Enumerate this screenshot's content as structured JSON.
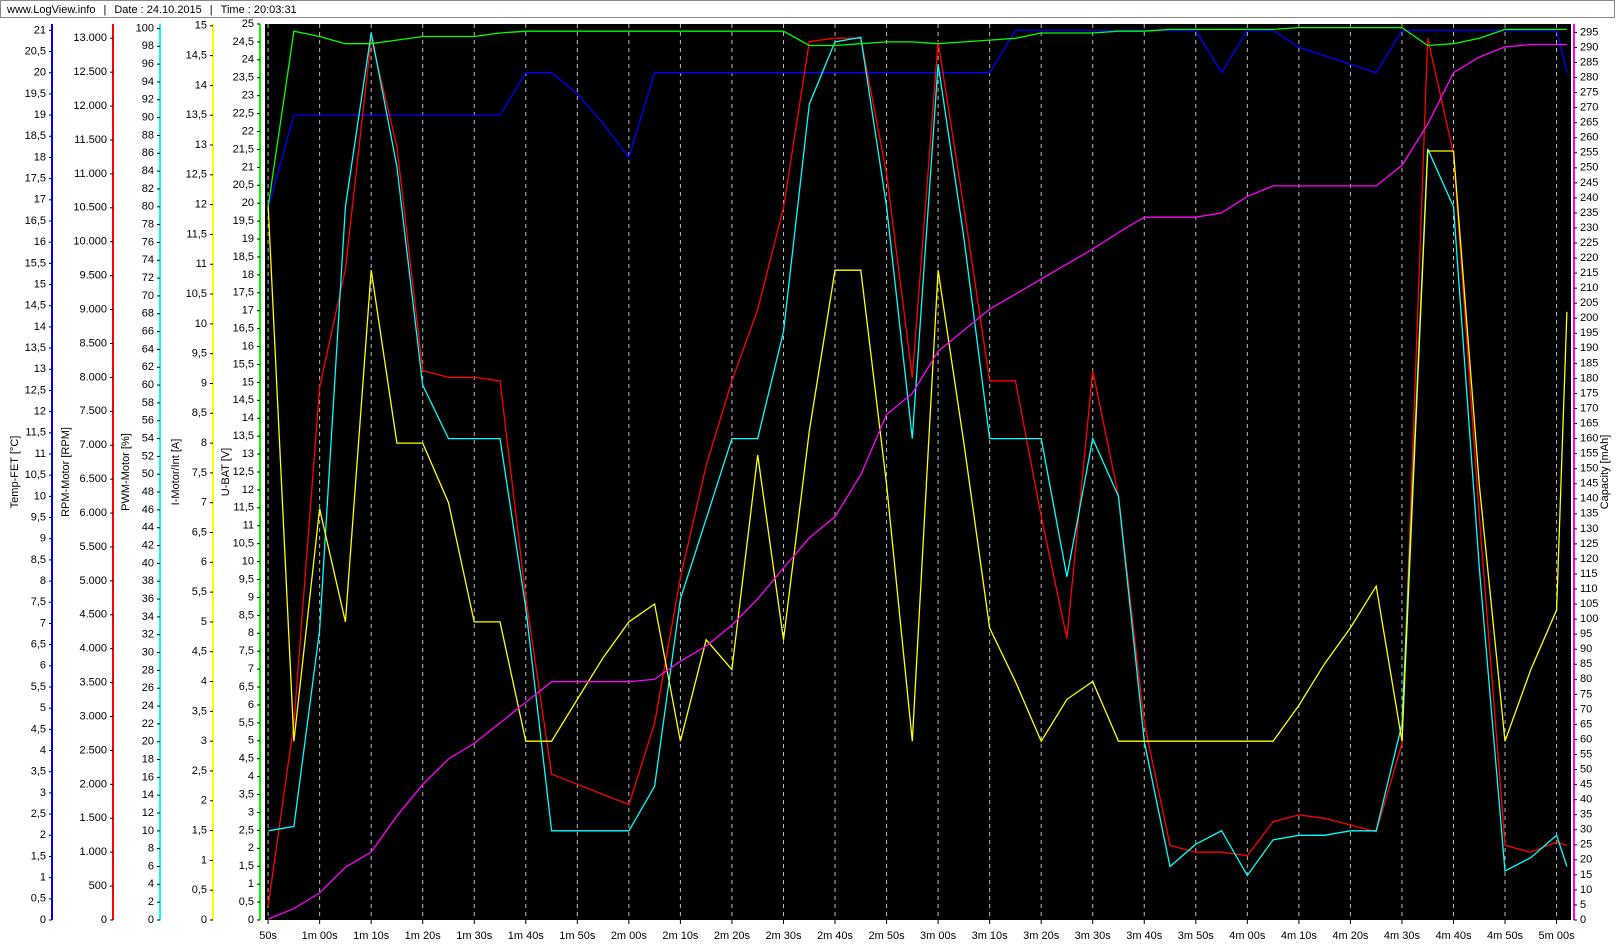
{
  "header": {
    "site": "www.LogView.info",
    "date": "Date : 24.10.2015",
    "time": "Time : 20:03:31"
  },
  "chart_data": {
    "type": "line",
    "grid": true,
    "x": [
      50,
      55,
      60,
      65,
      70,
      75,
      80,
      85,
      90,
      95,
      100,
      105,
      110,
      115,
      120,
      125,
      130,
      135,
      140,
      145,
      150,
      155,
      160,
      165,
      170,
      175,
      180,
      185,
      190,
      195,
      200,
      205,
      210,
      215,
      220,
      225,
      230,
      235,
      240,
      245,
      250,
      255,
      260,
      265,
      270,
      275,
      280,
      285,
      290,
      295,
      300,
      302
    ],
    "xlim": [
      49.4,
      302.8
    ],
    "xticks": [
      {
        "value": 50,
        "label": "50s"
      },
      {
        "value": 60,
        "label": "1m 00s"
      },
      {
        "value": 70,
        "label": "1m 10s"
      },
      {
        "value": 80,
        "label": "1m 20s"
      },
      {
        "value": 90,
        "label": "1m 30s"
      },
      {
        "value": 100,
        "label": "1m 40s"
      },
      {
        "value": 110,
        "label": "1m 50s"
      },
      {
        "value": 120,
        "label": "2m 00s"
      },
      {
        "value": 130,
        "label": "2m 10s"
      },
      {
        "value": 140,
        "label": "2m 20s"
      },
      {
        "value": 150,
        "label": "2m 30s"
      },
      {
        "value": 160,
        "label": "2m 40s"
      },
      {
        "value": 170,
        "label": "2m 50s"
      },
      {
        "value": 180,
        "label": "3m 00s"
      },
      {
        "value": 190,
        "label": "3m 10s"
      },
      {
        "value": 200,
        "label": "3m 20s"
      },
      {
        "value": 210,
        "label": "3m 30s"
      },
      {
        "value": 220,
        "label": "3m 40s"
      },
      {
        "value": 230,
        "label": "3m 50s"
      },
      {
        "value": 240,
        "label": "4m 00s"
      },
      {
        "value": 250,
        "label": "4m 10s"
      },
      {
        "value": 260,
        "label": "4m 20s"
      },
      {
        "value": 270,
        "label": "4m 30s"
      },
      {
        "value": 280,
        "label": "4m 40s"
      },
      {
        "value": 290,
        "label": "4m 50s"
      },
      {
        "value": 300,
        "label": "5m 00s"
      }
    ],
    "series": [
      {
        "name": "Temp-FET [°C]",
        "color": "#0000ff",
        "ylim": [
          0,
          21.15
        ],
        "yticks": [
          0,
          {
            "value": 0.5,
            "label": "0,5"
          },
          1,
          {
            "value": 1.5,
            "label": "1,5"
          },
          2,
          {
            "value": 2.5,
            "label": "2,5"
          },
          3,
          {
            "value": 3.5,
            "label": "3,5"
          },
          4,
          {
            "value": 4.5,
            "label": "4,5"
          },
          5,
          {
            "value": 5.5,
            "label": "5,5"
          },
          6,
          {
            "value": 6.5,
            "label": "6,5"
          },
          7,
          {
            "value": 7.5,
            "label": "7,5"
          },
          8,
          {
            "value": 8.5,
            "label": "8,5"
          },
          9,
          {
            "value": 9.5,
            "label": "9,5"
          },
          10,
          {
            "value": 10.5,
            "label": "10,5"
          },
          11,
          {
            "value": 11.5,
            "label": "11,5"
          },
          12,
          {
            "value": 12.5,
            "label": "12,5"
          },
          13,
          {
            "value": 13.5,
            "label": "13,5"
          },
          14,
          {
            "value": 14.5,
            "label": "14,5"
          },
          15,
          {
            "value": 15.5,
            "label": "15,5"
          },
          16,
          {
            "value": 16.5,
            "label": "16,5"
          },
          17,
          {
            "value": 17.5,
            "label": "17,5"
          },
          18,
          {
            "value": 18.5,
            "label": "18,5"
          },
          19,
          {
            "value": 19.5,
            "label": "19,5"
          },
          20,
          {
            "value": 20.5,
            "label": "20,5"
          },
          21
        ],
        "values": [
          16.8,
          19,
          19,
          19,
          19,
          19,
          19,
          19,
          19,
          19,
          20,
          20,
          19.5,
          18.8,
          18,
          20,
          20,
          20,
          20,
          20,
          20,
          20,
          20,
          20,
          20,
          20,
          20,
          20,
          20,
          21,
          21,
          21,
          21,
          21,
          21,
          21,
          21,
          20,
          21,
          21,
          20.6,
          20.4,
          20.2,
          20,
          21,
          21,
          21,
          21,
          21,
          21,
          21,
          20
        ]
      },
      {
        "name": "RPM-Motor [RPM]",
        "color": "#ff0000",
        "ylim": [
          0,
          13210
        ],
        "yticks": [
          0,
          500,
          {
            "value": 1000,
            "label": "1.000"
          },
          {
            "value": 1500,
            "label": "1.500"
          },
          {
            "value": 2000,
            "label": "2.000"
          },
          {
            "value": 2500,
            "label": "2.500"
          },
          {
            "value": 3000,
            "label": "3.000"
          },
          {
            "value": 3500,
            "label": "3.500"
          },
          {
            "value": 4000,
            "label": "4.000"
          },
          {
            "value": 4500,
            "label": "4.500"
          },
          {
            "value": 5000,
            "label": "5.000"
          },
          {
            "value": 5500,
            "label": "5.500"
          },
          {
            "value": 6000,
            "label": "6.000"
          },
          {
            "value": 6500,
            "label": "6.500"
          },
          {
            "value": 7000,
            "label": "7.000"
          },
          {
            "value": 7500,
            "label": "7.500"
          },
          {
            "value": 8000,
            "label": "8.000"
          },
          {
            "value": 8500,
            "label": "8.500"
          },
          {
            "value": 9000,
            "label": "9.000"
          },
          {
            "value": 9500,
            "label": "9.500"
          },
          {
            "value": 10000,
            "label": "10.000"
          },
          {
            "value": 10500,
            "label": "10.500"
          },
          {
            "value": 11000,
            "label": "11.000"
          },
          {
            "value": 11500,
            "label": "11.500"
          },
          {
            "value": 12000,
            "label": "12.000"
          },
          {
            "value": 12500,
            "label": "12.500"
          },
          {
            "value": 13000,
            "label": "13.000"
          }
        ],
        "values": [
          200,
          2900,
          7850,
          9600,
          13000,
          11400,
          8100,
          8000,
          8000,
          7950,
          4750,
          2150,
          2000,
          1850,
          1700,
          2900,
          5050,
          6700,
          7950,
          9000,
          10500,
          12950,
          13000,
          13000,
          11000,
          8000,
          12950,
          10500,
          7950,
          7950,
          5950,
          4150,
          8100,
          6250,
          2900,
          1100,
          1000,
          1000,
          950,
          1450,
          1550,
          1500,
          1400,
          1300,
          2600,
          13000,
          11300,
          5950,
          1100,
          1000,
          1150,
          1100
        ]
      },
      {
        "name": "PWM-Motor [%]",
        "color": "#00ffff",
        "ylim": [
          0,
          100.5
        ],
        "yticks": [
          0,
          2,
          4,
          6,
          8,
          10,
          12,
          14,
          16,
          18,
          20,
          22,
          24,
          26,
          28,
          30,
          32,
          34,
          36,
          38,
          40,
          42,
          44,
          46,
          48,
          50,
          52,
          54,
          56,
          58,
          60,
          62,
          64,
          66,
          68,
          70,
          72,
          74,
          76,
          78,
          80,
          82,
          84,
          86,
          88,
          90,
          92,
          94,
          96,
          98,
          100
        ],
        "values": [
          10,
          10.5,
          32.5,
          80,
          99.5,
          84.5,
          60,
          54,
          54,
          54,
          35,
          10,
          10,
          10,
          10,
          15,
          36,
          45,
          54,
          54,
          66,
          91.5,
          98.5,
          99,
          80,
          54,
          96,
          76.5,
          54,
          54,
          54,
          38.5,
          54,
          47.5,
          20,
          6,
          8.5,
          10,
          5,
          9,
          9.5,
          9.5,
          10,
          10,
          22,
          86.5,
          80,
          39.5,
          5.5,
          7,
          9.5,
          6
        ]
      },
      {
        "name": "I-Motor/Int [A]",
        "color": "#ffff00",
        "ylim": [
          0,
          15.03
        ],
        "yticks": [
          0,
          {
            "value": 0.5,
            "label": "0,5"
          },
          1,
          {
            "value": 1.5,
            "label": "1,5"
          },
          2,
          {
            "value": 2.5,
            "label": "2,5"
          },
          3,
          {
            "value": 3.5,
            "label": "3,5"
          },
          4,
          {
            "value": 4.5,
            "label": "4,5"
          },
          5,
          {
            "value": 5.5,
            "label": "5,5"
          },
          6,
          {
            "value": 6.5,
            "label": "6,5"
          },
          7,
          {
            "value": 7.5,
            "label": "7,5"
          },
          8,
          {
            "value": 8.5,
            "label": "8,5"
          },
          9,
          {
            "value": 9.5,
            "label": "9,5"
          },
          10,
          {
            "value": 10.5,
            "label": "10,5"
          },
          11,
          {
            "value": 11.5,
            "label": "11,5"
          },
          12,
          {
            "value": 12.5,
            "label": "12,5"
          },
          13,
          {
            "value": 13.5,
            "label": "13,5"
          },
          14,
          {
            "value": 14.5,
            "label": "14,5"
          },
          15
        ],
        "values": [
          12,
          3,
          6.9,
          5,
          10.9,
          8,
          8,
          7,
          5,
          5,
          3,
          3,
          3.7,
          4.4,
          5,
          5.3,
          3,
          4.7,
          4.2,
          7.8,
          4.7,
          8.2,
          10.9,
          10.9,
          7.3,
          3,
          10.9,
          8,
          4.9,
          4,
          3,
          3.7,
          4,
          3,
          3,
          3,
          3,
          3,
          3,
          3,
          3.6,
          4.3,
          4.9,
          5.6,
          3,
          12.9,
          12.9,
          7.3,
          3,
          4.2,
          5.2,
          10.2
        ]
      },
      {
        "name": "U-BAT [V]",
        "color": "#00ff00",
        "ylim": [
          0,
          25
        ],
        "yticks": [
          0,
          {
            "value": 0.5,
            "label": "0,5"
          },
          1,
          {
            "value": 1.5,
            "label": "1,5"
          },
          2,
          {
            "value": 2.5,
            "label": "2,5"
          },
          3,
          {
            "value": 3.5,
            "label": "3,5"
          },
          4,
          {
            "value": 4.5,
            "label": "4,5"
          },
          5,
          {
            "value": 5.5,
            "label": "5,5"
          },
          6,
          {
            "value": 6.5,
            "label": "6,5"
          },
          7,
          {
            "value": 7.5,
            "label": "7,5"
          },
          8,
          {
            "value": 8.5,
            "label": "8,5"
          },
          9,
          {
            "value": 9.5,
            "label": "9,5"
          },
          10,
          {
            "value": 10.5,
            "label": "10,5"
          },
          11,
          {
            "value": 11.5,
            "label": "11,5"
          },
          12,
          {
            "value": 12.5,
            "label": "12,5"
          },
          13,
          {
            "value": 13.5,
            "label": "13,5"
          },
          14,
          {
            "value": 14.5,
            "label": "14,5"
          },
          15,
          {
            "value": 15.5,
            "label": "15,5"
          },
          16,
          {
            "value": 16.5,
            "label": "16,5"
          },
          17,
          {
            "value": 17.5,
            "label": "17,5"
          },
          18,
          {
            "value": 18.5,
            "label": "18,5"
          },
          19,
          {
            "value": 19.5,
            "label": "19,5"
          },
          20,
          {
            "value": 20.5,
            "label": "20,5"
          },
          21,
          {
            "value": 21.5,
            "label": "21,5"
          },
          22,
          {
            "value": 22.5,
            "label": "22,5"
          },
          23,
          {
            "value": 23.5,
            "label": "23,5"
          },
          24,
          {
            "value": 24.5,
            "label": "24,5"
          },
          25
        ],
        "values": [
          19.9,
          24.8,
          24.65,
          24.45,
          24.45,
          24.55,
          24.65,
          24.65,
          24.65,
          24.75,
          24.8,
          24.8,
          24.8,
          24.8,
          24.8,
          24.8,
          24.8,
          24.8,
          24.8,
          24.8,
          24.8,
          24.4,
          24.4,
          24.45,
          24.5,
          24.5,
          24.45,
          24.5,
          24.55,
          24.6,
          24.75,
          24.75,
          24.75,
          24.8,
          24.8,
          24.85,
          24.85,
          24.85,
          24.85,
          24.85,
          24.9,
          24.9,
          24.9,
          24.9,
          24.9,
          24.4,
          24.45,
          24.6,
          24.85,
          24.85,
          24.85,
          24.85
        ]
      },
      {
        "name": "Capacity [mAh]",
        "color": "#ff00ff",
        "ylim": [
          0,
          297.8
        ],
        "yticks": [
          0,
          5,
          10,
          15,
          20,
          25,
          30,
          35,
          40,
          45,
          50,
          55,
          60,
          65,
          70,
          75,
          80,
          85,
          90,
          95,
          100,
          105,
          110,
          115,
          120,
          125,
          130,
          135,
          140,
          145,
          150,
          155,
          160,
          165,
          170,
          175,
          180,
          185,
          190,
          195,
          200,
          205,
          210,
          215,
          220,
          225,
          230,
          235,
          240,
          245,
          250,
          255,
          260,
          265,
          270,
          275,
          280,
          285,
          290,
          295
        ],
        "values": [
          0.3,
          3.8,
          9,
          17.5,
          22.6,
          34.6,
          45,
          53.5,
          58.7,
          65.5,
          72.4,
          79.2,
          79.2,
          79.2,
          79.2,
          80,
          86,
          91,
          98,
          106.7,
          117,
          127,
          134,
          148,
          168,
          175,
          189,
          196,
          203,
          208,
          213,
          218,
          223,
          228.5,
          233.6,
          233.6,
          233.6,
          235,
          240.5,
          244,
          244,
          244,
          244,
          244,
          250.8,
          264.5,
          281.6,
          286.8,
          290.2,
          291,
          291,
          291
        ]
      }
    ]
  }
}
